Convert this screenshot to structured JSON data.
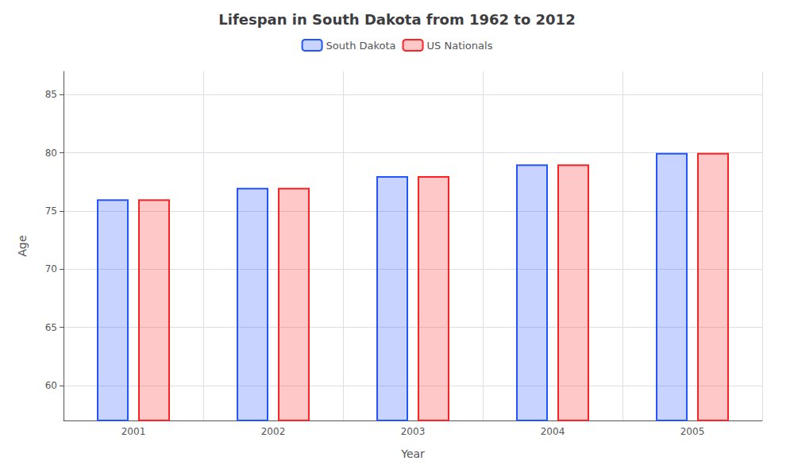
{
  "chart_data": {
    "type": "bar",
    "title": "Lifespan in South Dakota from 1962 to 2012",
    "xlabel": "Year",
    "ylabel": "Age",
    "categories": [
      "2001",
      "2002",
      "2003",
      "2004",
      "2005"
    ],
    "series": [
      {
        "name": "South Dakota",
        "color": "#2255ff",
        "values": [
          76,
          77,
          78,
          79,
          80
        ]
      },
      {
        "name": "US Nationals",
        "color": "#ff2222",
        "values": [
          76,
          77,
          78,
          79,
          80
        ]
      }
    ],
    "ylim": [
      57,
      87
    ],
    "yticks": [
      60,
      65,
      70,
      75,
      80,
      85
    ],
    "grid": true,
    "legend": "top"
  }
}
